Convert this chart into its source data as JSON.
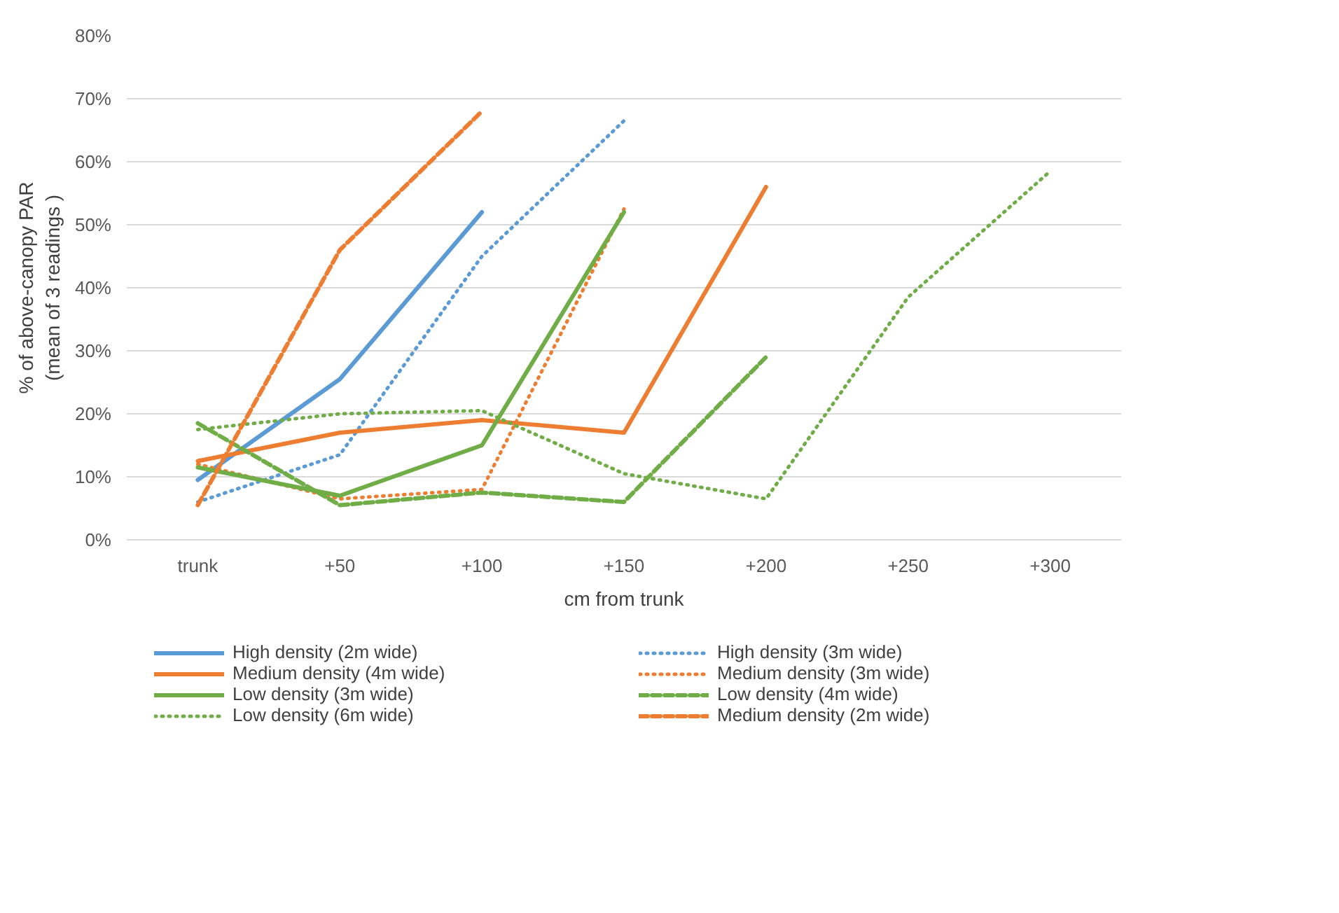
{
  "chart_data": {
    "type": "line",
    "xlabel": "cm from trunk",
    "ylabel": "% of above-canopy PAR\n(mean of 3 readings )",
    "categories": [
      "trunk",
      "+50",
      "+100",
      "+150",
      "+200",
      "+250",
      "+300"
    ],
    "ylim": [
      0,
      80
    ],
    "yticks": [
      {
        "value": 0,
        "label": "0%"
      },
      {
        "value": 10,
        "label": "10%"
      },
      {
        "value": 20,
        "label": "20%"
      },
      {
        "value": 30,
        "label": "30%"
      },
      {
        "value": 40,
        "label": "40%"
      },
      {
        "value": 50,
        "label": "50%"
      },
      {
        "value": 60,
        "label": "60%"
      },
      {
        "value": 70,
        "label": "70%"
      },
      {
        "value": 80,
        "label": "80%"
      }
    ],
    "grid": "y",
    "legend": "bottom",
    "marker": "none",
    "series": [
      {
        "name": "High density (2m wide)",
        "color": "#5b9bd5",
        "line_style": "solid",
        "values": [
          9.5,
          25.5,
          52,
          null,
          null,
          null,
          null
        ]
      },
      {
        "name": "High density (3m wide)",
        "color": "#5b9bd5",
        "line_style": "dotted",
        "values": [
          6,
          13.5,
          45,
          66.5,
          null,
          null,
          null
        ]
      },
      {
        "name": "Medium density (4m wide)",
        "color": "#ed7d31",
        "line_style": "solid",
        "values": [
          12.5,
          17,
          19,
          17,
          56,
          null,
          null
        ]
      },
      {
        "name": "Medium density (3m wide)",
        "color": "#ed7d31",
        "line_style": "dotted",
        "values": [
          12,
          6.5,
          8,
          52.5,
          null,
          null,
          null
        ]
      },
      {
        "name": "Low density (3m wide)",
        "color": "#70ad47",
        "line_style": "solid",
        "values": [
          11.5,
          7,
          15,
          52,
          null,
          null,
          null
        ]
      },
      {
        "name": "Low density (4m wide)",
        "color": "#70ad47",
        "line_style": "dashed",
        "values": [
          18.5,
          5.5,
          7.5,
          6,
          29,
          null,
          null
        ]
      },
      {
        "name": "Low density (6m wide)",
        "color": "#70ad47",
        "line_style": "dotted",
        "values": [
          17.5,
          20,
          20.5,
          10.5,
          6.5,
          38.5,
          58.5
        ]
      },
      {
        "name": "Medium density (2m wide)",
        "color": "#ed7d31",
        "line_style": "dashed",
        "values": [
          5.5,
          46,
          68,
          null,
          null,
          null,
          null
        ]
      }
    ]
  }
}
